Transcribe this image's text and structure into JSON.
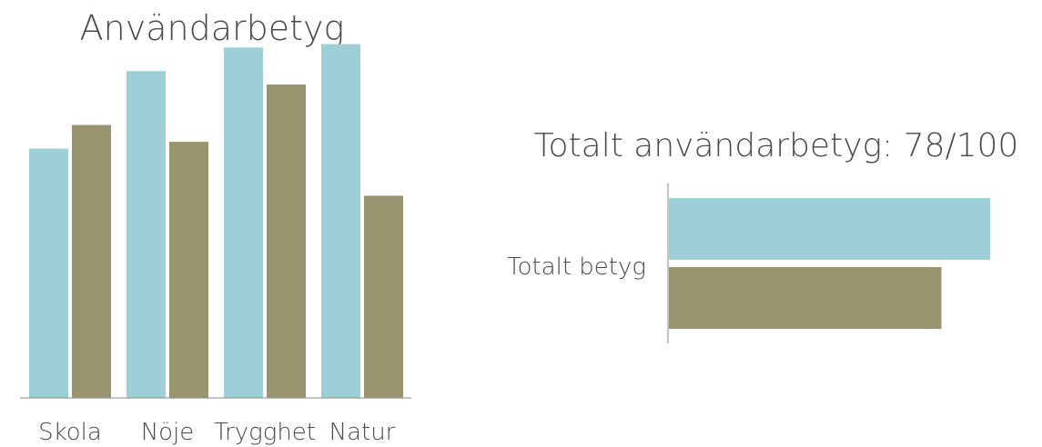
{
  "chart_data": [
    {
      "type": "bar",
      "title": "Användarbetyg",
      "categories": [
        "Skola",
        "Nöje",
        "Trygghet",
        "Natur"
      ],
      "series": [
        {
          "values": [
            74,
            97,
            104,
            105
          ]
        },
        {
          "values": [
            81,
            76,
            93,
            60
          ]
        }
      ],
      "ylim": [
        0,
        110
      ],
      "grid": false,
      "colors": [
        "#9ecfd6",
        "#999470"
      ]
    },
    {
      "type": "bar",
      "orientation": "horizontal",
      "title": "Totalt användarbetyg: 78/100",
      "categories": [
        "Totalt betyg"
      ],
      "series": [
        {
          "values": [
            92
          ]
        },
        {
          "values": [
            78
          ]
        }
      ],
      "xlim": [
        0,
        100
      ],
      "grid": false,
      "colors": [
        "#9ecfd6",
        "#999470"
      ]
    }
  ]
}
